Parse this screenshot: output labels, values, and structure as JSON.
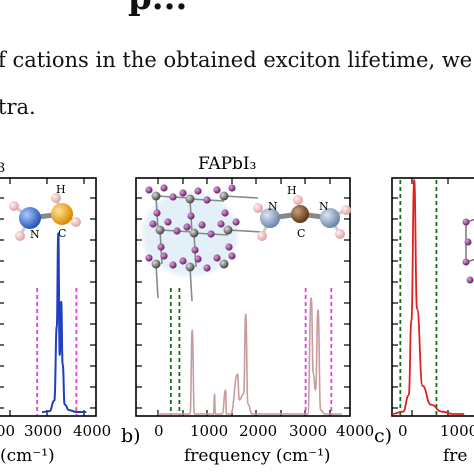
{
  "text": {
    "heading": "p...",
    "line1": "f cations in the obtained exciton lifetime, we",
    "line2": "tra."
  },
  "panels": {
    "a": {
      "title_fragment": "3",
      "tick_labels": [
        "00",
        "3000",
        "4000"
      ],
      "xlabel_fragment": "(cm⁻¹)",
      "atom_labels": [
        "H",
        "N",
        "C"
      ],
      "series_color": "#1f3fbf"
    },
    "b": {
      "title": "FAPbI₃",
      "letter": "b)",
      "tick_labels": [
        "0",
        "1000",
        "2000",
        "3000",
        "4000"
      ],
      "xlabel": "frequency (cm⁻¹)",
      "atom_labels": [
        "H",
        "N",
        "N",
        "C"
      ],
      "series_color": "#c79c9c"
    },
    "c": {
      "letter": "c)",
      "tick_labels": [
        "0",
        "1000"
      ],
      "xlabel_fragment": "fre",
      "series_color": "#e02020"
    }
  },
  "chart_data": [
    {
      "type": "line",
      "panel": "a",
      "xlim": [
        2000,
        4000
      ],
      "x": [
        2900,
        3050,
        3150,
        3200,
        3230,
        3260,
        3290,
        3320,
        3360,
        3450,
        3600,
        3800
      ],
      "values": [
        0,
        0.005,
        0.06,
        0.45,
        0.94,
        0.3,
        0.58,
        0.25,
        0.04,
        0.01,
        0,
        0
      ],
      "markers": [
        {
          "x": 2800,
          "style": "magenta-dashed"
        },
        {
          "x": 3600,
          "style": "magenta-dashed"
        }
      ]
    },
    {
      "type": "line",
      "panel": "b",
      "xlim": [
        -300,
        4000
      ],
      "x": [
        -300,
        0,
        450,
        500,
        550,
        1000,
        1020,
        1040,
        1200,
        1280,
        1300,
        1400,
        1560,
        1600,
        1700,
        1750,
        1800,
        1900,
        3100,
        3200,
        3280,
        3330,
        3380,
        3440,
        3500,
        3600,
        4000
      ],
      "values": [
        0,
        0,
        0,
        0.42,
        0,
        0,
        0.1,
        0,
        0,
        0.12,
        0,
        0,
        0.2,
        0.07,
        0.1,
        0.5,
        0.05,
        0,
        0,
        0,
        0.58,
        0.2,
        0.12,
        0.52,
        0.02,
        0,
        0
      ],
      "markers": [
        {
          "x": 0,
          "style": "green-dashed"
        },
        {
          "x": 200,
          "style": "green-dashed"
        },
        {
          "x": 3150,
          "style": "magenta-dashed"
        },
        {
          "x": 3750,
          "style": "magenta-dashed"
        }
      ]
    },
    {
      "type": "line",
      "panel": "c",
      "xlim": [
        -300,
        1500
      ],
      "x": [
        -300,
        -100,
        0,
        50,
        100,
        150,
        250,
        400,
        600,
        800,
        1000
      ],
      "values": [
        0,
        0.01,
        0.08,
        0.4,
        1.0,
        0.45,
        0.12,
        0.04,
        0.01,
        0,
        0
      ],
      "markers": [
        {
          "x": -150,
          "style": "green-dashed"
        },
        {
          "x": 500,
          "style": "green-dashed"
        }
      ]
    }
  ]
}
